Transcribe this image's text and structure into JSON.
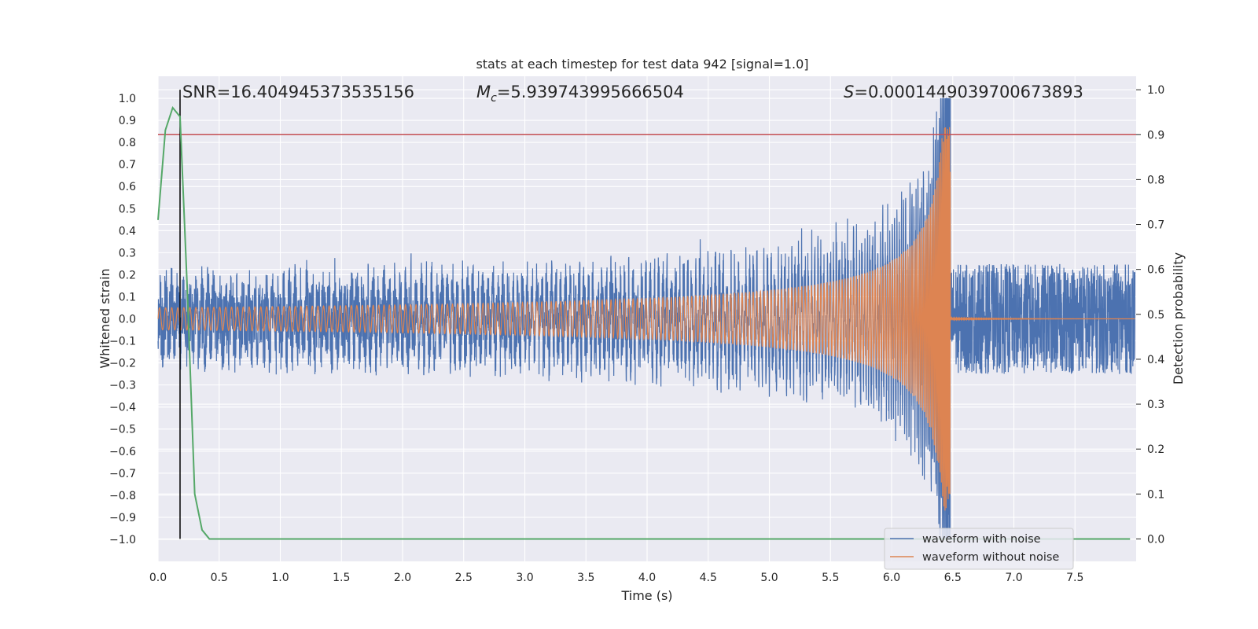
{
  "chart_data": {
    "type": "line",
    "title": "stats at each timestep for test data 942 [signal=1.0]",
    "xlabel": "Time (s)",
    "ylabel": "Whitened strain",
    "ylabel_right": "Detection probability",
    "xlim": [
      0.0,
      8.0
    ],
    "ylim": [
      -1.1,
      1.1
    ],
    "ylim_right": [
      -0.05,
      1.03
    ],
    "x_ticks": [
      "0.0",
      "0.5",
      "1.0",
      "1.5",
      "2.0",
      "2.5",
      "3.0",
      "3.5",
      "4.0",
      "4.5",
      "5.0",
      "5.5",
      "6.0",
      "6.5",
      "7.0",
      "7.5"
    ],
    "y_ticks": [
      "1.0",
      "0.9",
      "0.8",
      "0.7",
      "0.6",
      "0.5",
      "0.4",
      "0.3",
      "0.2",
      "0.1",
      "0.0",
      "−0.1",
      "−0.2",
      "−0.3",
      "−0.4",
      "−0.5",
      "−0.6",
      "−0.7",
      "−0.8",
      "−0.9",
      "−1.0"
    ],
    "y_right_ticks": [
      "1.0",
      "0.9",
      "0.8",
      "0.7",
      "0.6",
      "0.5",
      "0.4",
      "0.3",
      "0.2",
      "0.1",
      "0.0"
    ],
    "grid": true,
    "legend_position": "bottom-right",
    "annotations": {
      "snr": "SNR=16.404945373535156",
      "mc_symbol": "M",
      "mc_subscript": "c",
      "mc_value": "=5.939743995666504",
      "s_symbol": "S",
      "s_value": "=0.0001449039700673893"
    },
    "series": [
      {
        "name": "waveform with noise",
        "color": "#4c72b0",
        "kind": "noisy-chirp",
        "noise_amplitude": 0.25,
        "signal_start": 0.0,
        "merger_time": 6.48,
        "peak_amplitude": 1.0
      },
      {
        "name": "waveform without noise",
        "color": "#dd8452",
        "kind": "chirp",
        "start_amplitude": 0.05,
        "merger_time": 6.48,
        "peak_amplitude": 0.87,
        "start_frequency": 20
      },
      {
        "color": "#55a868",
        "axis": "right",
        "kind": "probability",
        "x": [
          0.0,
          0.06,
          0.12,
          0.18,
          0.24,
          0.3,
          0.36,
          0.42,
          0.5,
          1.0,
          2.0,
          3.0,
          4.0,
          5.0,
          6.0,
          7.0,
          7.95
        ],
        "y": [
          0.71,
          0.91,
          0.96,
          0.94,
          0.55,
          0.1,
          0.02,
          0.0,
          0.0,
          0.0,
          0.0,
          0.0,
          0.0,
          0.0,
          0.0,
          0.0,
          0.0
        ]
      }
    ],
    "threshold_line": {
      "value": 0.9,
      "axis": "right",
      "color": "#c44e52"
    },
    "vertical_marker": {
      "x": 0.18,
      "color": "#000000"
    }
  }
}
